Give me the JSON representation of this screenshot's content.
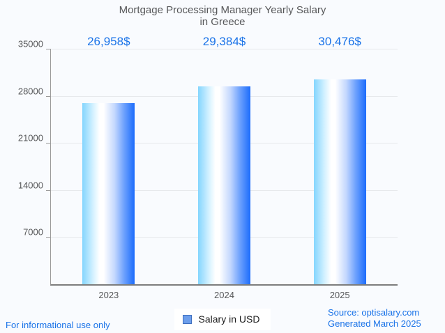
{
  "title": {
    "line1": "Mortgage Processing Manager Yearly Salary",
    "line2": "in Greece"
  },
  "chart_data": {
    "type": "bar",
    "title": "Mortgage Processing Manager Yearly Salary in Greece",
    "categories": [
      "2023",
      "2024",
      "2025"
    ],
    "values": [
      26958,
      29384,
      30476
    ],
    "value_labels": [
      "26,958$",
      "29,384$",
      "30,476$"
    ],
    "series_name": "Salary in USD",
    "xlabel": "",
    "ylabel": "",
    "ylim": [
      0,
      35000
    ],
    "yticks": [
      35000,
      28000,
      21000,
      14000,
      7000
    ],
    "grid": true,
    "legend_position": "bottom"
  },
  "legend": {
    "label": "Salary in USD"
  },
  "footer": {
    "disclaimer": "For informational use only",
    "source": "Source: optisalary.com",
    "generated": "Generated March 2025"
  },
  "colors": {
    "accent_blue": "#1a73e8",
    "title_gray": "#57585a",
    "bar_gradient_left": "#84d5fe",
    "bar_gradient_mid": "#ffffff",
    "bar_gradient_right": "#1c6cfc",
    "legend_swatch": "#6d9eeb",
    "background": "#f9fbfe"
  }
}
